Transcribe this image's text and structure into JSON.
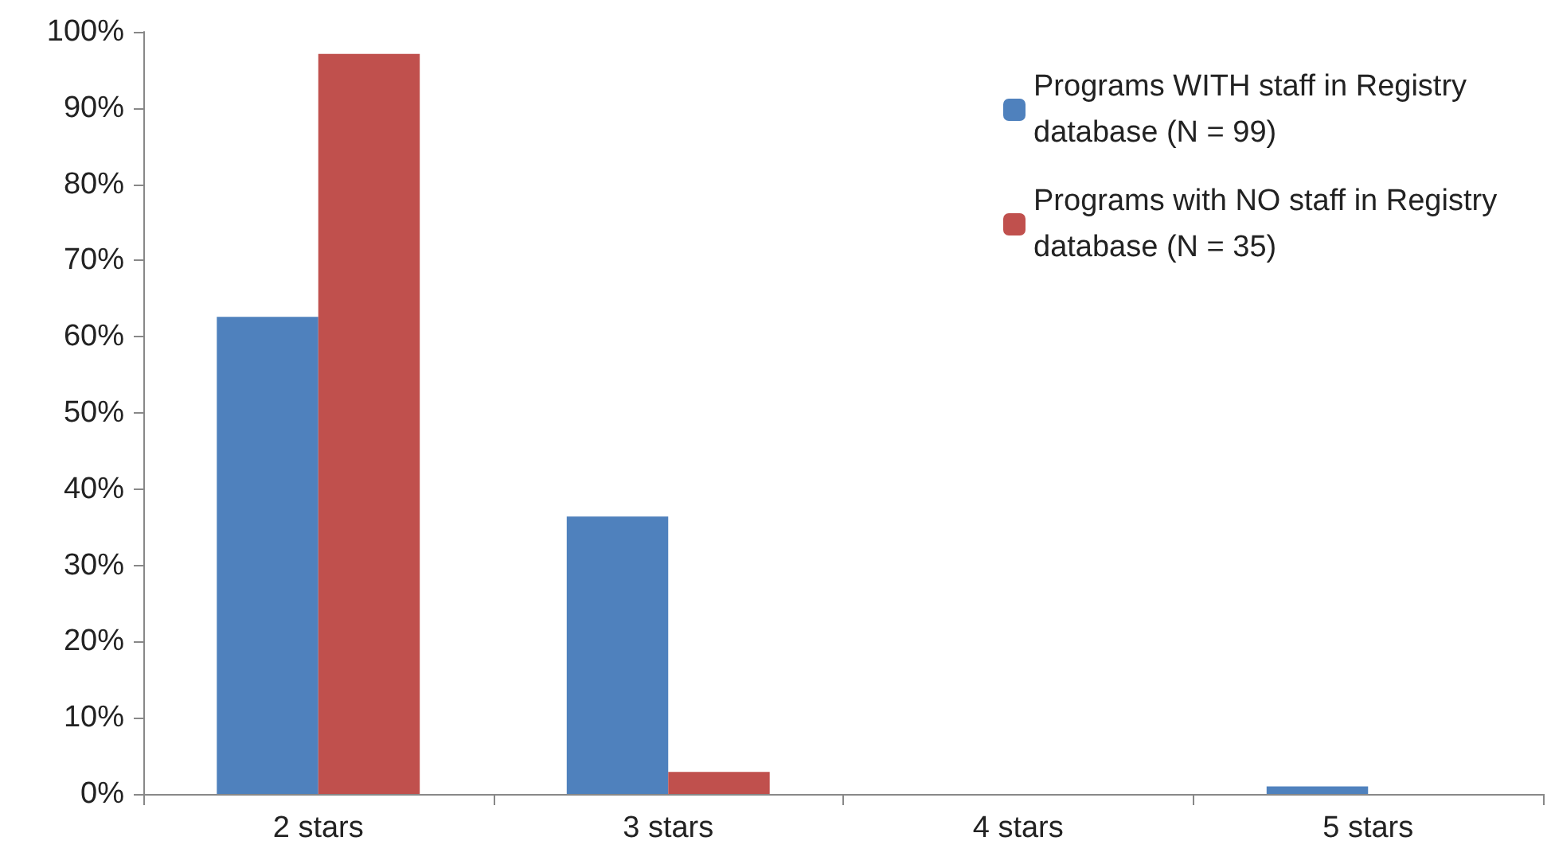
{
  "chart_data": {
    "type": "bar",
    "categories": [
      "2 stars",
      "3 stars",
      "4 stars",
      "5 stars"
    ],
    "series": [
      {
        "name": "Programs WITH staff in Registry database (N = 99)",
        "color": "#4f81bd",
        "values": [
          62.6,
          36.4,
          0,
          1.0
        ]
      },
      {
        "name": "Programs with NO staff in Registry database (N = 35)",
        "color": "#c0504d",
        "values": [
          97.1,
          2.9,
          0,
          0
        ]
      }
    ],
    "ylim": [
      0,
      100
    ],
    "yticks": [
      {
        "value": 0,
        "label": "0%"
      },
      {
        "value": 10,
        "label": "10%"
      },
      {
        "value": 20,
        "label": "20%"
      },
      {
        "value": 30,
        "label": "30%"
      },
      {
        "value": 40,
        "label": "40%"
      },
      {
        "value": 50,
        "label": "50%"
      },
      {
        "value": 60,
        "label": "60%"
      },
      {
        "value": 70,
        "label": "70%"
      },
      {
        "value": 80,
        "label": "80%"
      },
      {
        "value": 90,
        "label": "90%"
      },
      {
        "value": 100,
        "label": "100%"
      }
    ],
    "grid": false,
    "legend": "top right"
  }
}
